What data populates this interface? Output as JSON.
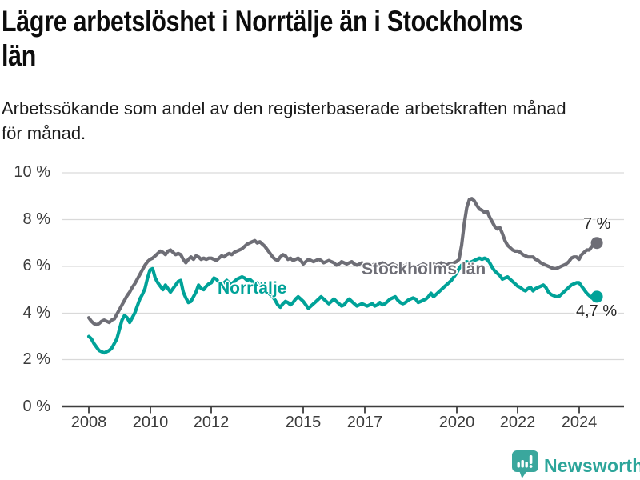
{
  "header": {
    "title_line1": "Lägre arbetslöshet i Norrtälje än i Stockholms",
    "title_line2": "län",
    "subtitle_line1": "Arbetssökande som andel av den registerbaserade arbetskraften månad",
    "subtitle_line2": "för månad."
  },
  "chart_data": {
    "type": "line",
    "title": "Lägre arbetslöshet i Norrtälje än i Stockholms län",
    "subtitle": "Arbetssökande som andel av den registerbaserade arbetskraften månad för månad.",
    "x_unit": "month",
    "x_start": "2008-01",
    "x_end": "2024-08",
    "ylim": [
      0,
      10
    ],
    "grid": "horizontal",
    "legend_position": "inline-labels",
    "y_tick_labels": [
      "10 %",
      "8 %",
      "6 %",
      "4 %",
      "2 %",
      "0 %"
    ],
    "x_tick_labels": [
      "2008",
      "2010",
      "2012",
      "2015",
      "2017",
      "2020",
      "2022",
      "2024"
    ],
    "series": [
      {
        "name": "Stockholms län",
        "color": "#6e6e76",
        "end_label": "7 %",
        "end_value": 7.0,
        "values": [
          3.8,
          3.65,
          3.55,
          3.5,
          3.55,
          3.65,
          3.7,
          3.65,
          3.6,
          3.7,
          3.75,
          3.95,
          4.15,
          4.35,
          4.55,
          4.75,
          4.9,
          5.1,
          5.25,
          5.45,
          5.65,
          5.85,
          6.05,
          6.2,
          6.3,
          6.35,
          6.45,
          6.55,
          6.65,
          6.6,
          6.5,
          6.65,
          6.7,
          6.6,
          6.5,
          6.55,
          6.5,
          6.3,
          6.15,
          6.3,
          6.4,
          6.3,
          6.45,
          6.4,
          6.3,
          6.35,
          6.3,
          6.35,
          6.35,
          6.3,
          6.25,
          6.35,
          6.45,
          6.4,
          6.5,
          6.55,
          6.5,
          6.6,
          6.65,
          6.7,
          6.75,
          6.85,
          6.95,
          7.0,
          7.05,
          7.1,
          7.0,
          7.05,
          6.95,
          6.85,
          6.7,
          6.55,
          6.4,
          6.3,
          6.25,
          6.4,
          6.5,
          6.45,
          6.3,
          6.35,
          6.25,
          6.3,
          6.35,
          6.25,
          6.1,
          6.2,
          6.3,
          6.25,
          6.2,
          6.25,
          6.3,
          6.25,
          6.15,
          6.2,
          6.25,
          6.2,
          6.15,
          6.05,
          6.1,
          6.2,
          6.15,
          6.1,
          6.15,
          6.2,
          6.1,
          6.05,
          6.1,
          6.15,
          6.1,
          6.05,
          6.0,
          6.05,
          6.1,
          6.05,
          6.1,
          6.15,
          6.1,
          6.0,
          6.05,
          6.1,
          6.05,
          6.0,
          5.95,
          6.0,
          6.05,
          6.1,
          6.05,
          6.0,
          5.95,
          6.0,
          6.05,
          6.1,
          6.05,
          6.0,
          6.05,
          6.1,
          6.05,
          6.1,
          6.15,
          6.1,
          6.05,
          6.1,
          6.1,
          6.15,
          6.2,
          6.3,
          6.9,
          7.8,
          8.5,
          8.85,
          8.9,
          8.8,
          8.6,
          8.45,
          8.4,
          8.3,
          8.35,
          8.1,
          7.9,
          7.7,
          7.6,
          7.65,
          7.4,
          7.1,
          6.9,
          6.8,
          6.7,
          6.65,
          6.65,
          6.6,
          6.5,
          6.45,
          6.4,
          6.4,
          6.4,
          6.3,
          6.25,
          6.15,
          6.1,
          6.05,
          6.0,
          5.95,
          5.9,
          5.9,
          5.95,
          6.0,
          6.05,
          6.1,
          6.2,
          6.35,
          6.4,
          6.4,
          6.3,
          6.5,
          6.6,
          6.7,
          6.7,
          6.85,
          6.95,
          7.0
        ]
      },
      {
        "name": "Norrtälje",
        "color": "#00a298",
        "end_label": "4,7 %",
        "end_value": 4.7,
        "values": [
          3.0,
          2.9,
          2.7,
          2.55,
          2.4,
          2.35,
          2.3,
          2.35,
          2.4,
          2.5,
          2.7,
          2.9,
          3.3,
          3.7,
          3.9,
          3.8,
          3.6,
          3.8,
          4.0,
          4.3,
          4.6,
          4.8,
          5.05,
          5.5,
          5.85,
          5.9,
          5.5,
          5.3,
          5.15,
          5.0,
          5.2,
          5.05,
          4.9,
          5.05,
          5.2,
          5.35,
          5.4,
          4.9,
          4.65,
          4.45,
          4.5,
          4.7,
          4.9,
          5.2,
          5.05,
          5.0,
          5.15,
          5.25,
          5.3,
          5.5,
          5.45,
          5.3,
          5.2,
          5.3,
          5.4,
          5.3,
          5.25,
          5.35,
          5.45,
          5.5,
          5.55,
          5.5,
          5.4,
          5.45,
          5.35,
          5.25,
          5.3,
          5.2,
          5.1,
          5.0,
          4.9,
          4.8,
          4.7,
          4.55,
          4.35,
          4.25,
          4.4,
          4.5,
          4.45,
          4.35,
          4.45,
          4.6,
          4.7,
          4.6,
          4.5,
          4.35,
          4.2,
          4.3,
          4.4,
          4.5,
          4.6,
          4.7,
          4.6,
          4.5,
          4.4,
          4.5,
          4.6,
          4.5,
          4.4,
          4.3,
          4.35,
          4.5,
          4.6,
          4.5,
          4.4,
          4.3,
          4.35,
          4.4,
          4.35,
          4.3,
          4.35,
          4.4,
          4.3,
          4.35,
          4.45,
          4.35,
          4.4,
          4.5,
          4.6,
          4.65,
          4.7,
          4.55,
          4.45,
          4.4,
          4.45,
          4.55,
          4.6,
          4.65,
          4.6,
          4.45,
          4.5,
          4.55,
          4.6,
          4.7,
          4.85,
          4.7,
          4.8,
          4.9,
          5.0,
          5.1,
          5.2,
          5.3,
          5.4,
          5.55,
          5.7,
          5.9,
          6.05,
          6.15,
          6.2,
          6.15,
          6.2,
          6.25,
          6.3,
          6.35,
          6.3,
          6.35,
          6.3,
          6.15,
          5.95,
          5.8,
          5.7,
          5.6,
          5.45,
          5.5,
          5.55,
          5.45,
          5.35,
          5.25,
          5.15,
          5.1,
          5.0,
          4.95,
          5.05,
          5.1,
          4.95,
          5.05,
          5.1,
          5.15,
          5.2,
          5.1,
          4.9,
          4.8,
          4.75,
          4.7,
          4.7,
          4.8,
          4.9,
          5.0,
          5.1,
          5.2,
          5.25,
          5.3,
          5.3,
          5.15,
          5.0,
          4.85,
          4.75,
          4.65,
          4.6,
          4.7
        ]
      }
    ]
  },
  "footer": {
    "logo_text": "Newsworthy",
    "logo_color": "#2da59a",
    "logo_icon": "bar-chart-speech-bubble-icon"
  }
}
